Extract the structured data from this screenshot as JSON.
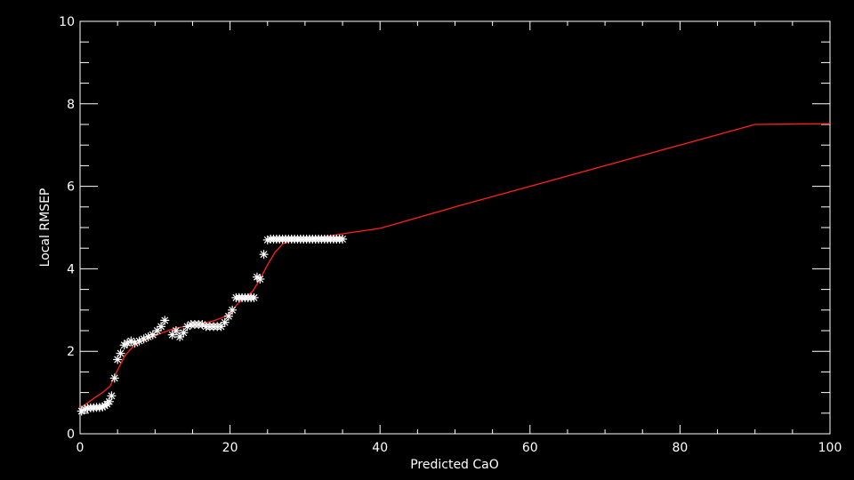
{
  "chart_data": {
    "type": "scatter",
    "xlabel": "Predicted CaO",
    "ylabel": "Local RMSEP",
    "xlim": [
      0,
      100
    ],
    "ylim": [
      0,
      10
    ],
    "x_ticks": [
      0,
      20,
      40,
      60,
      80,
      100
    ],
    "x_tick_labels": [
      "0",
      "20",
      "40",
      "60",
      "80",
      "100"
    ],
    "y_ticks": [
      0,
      2,
      4,
      6,
      8,
      10
    ],
    "y_tick_labels": [
      "0",
      "2",
      "4",
      "6",
      "8",
      "10"
    ],
    "grid": false,
    "colors": {
      "background": "#000000",
      "axes": "#ffffff",
      "points": "#ffffff",
      "fit": "#ff2020"
    },
    "series": [
      {
        "kind": "points",
        "marker": "asterisk",
        "x": [
          0.2,
          0.6,
          1.0,
          1.4,
          1.8,
          2.2,
          2.6,
          3.0,
          3.3,
          3.6,
          3.9,
          4.2,
          4.6,
          5.0,
          5.4,
          5.9,
          6.3,
          6.8,
          7.3,
          7.9,
          8.5,
          9.1,
          9.7,
          10.3,
          10.8,
          11.3,
          12.3,
          12.8,
          13.3,
          13.8,
          14.3,
          14.8,
          15.3,
          15.8,
          16.3,
          16.8,
          17.3,
          17.8,
          18.3,
          18.8,
          19.3,
          19.8,
          20.3,
          20.8,
          21.2,
          21.6,
          22.0,
          22.4,
          22.8,
          23.2,
          23.6,
          24.0,
          24.5,
          25.0,
          25.4,
          25.8,
          26.2,
          26.6,
          27.0,
          27.4,
          27.8,
          28.2,
          28.6,
          29.0,
          29.4,
          29.8,
          30.2,
          30.6,
          31.0,
          31.4,
          31.8,
          32.2,
          32.6,
          33.0,
          33.4,
          33.8,
          34.2,
          34.6,
          35.0
        ],
        "y": [
          0.55,
          0.6,
          0.62,
          0.63,
          0.63,
          0.64,
          0.64,
          0.65,
          0.68,
          0.72,
          0.78,
          0.92,
          1.35,
          1.8,
          1.95,
          2.15,
          2.2,
          2.25,
          2.2,
          2.25,
          2.3,
          2.35,
          2.4,
          2.5,
          2.6,
          2.75,
          2.4,
          2.5,
          2.35,
          2.45,
          2.6,
          2.65,
          2.65,
          2.65,
          2.65,
          2.6,
          2.6,
          2.6,
          2.6,
          2.6,
          2.7,
          2.85,
          3.0,
          3.3,
          3.3,
          3.3,
          3.3,
          3.3,
          3.3,
          3.3,
          3.8,
          3.75,
          4.35,
          4.7,
          4.72,
          4.72,
          4.72,
          4.72,
          4.72,
          4.72,
          4.72,
          4.72,
          4.72,
          4.72,
          4.72,
          4.72,
          4.72,
          4.72,
          4.72,
          4.72,
          4.72,
          4.72,
          4.72,
          4.72,
          4.72,
          4.72,
          4.72,
          4.72,
          4.72
        ]
      },
      {
        "kind": "fit-line",
        "x": [
          0,
          1,
          2,
          3,
          4,
          5,
          6,
          7,
          8,
          9,
          10,
          11,
          12,
          13,
          14,
          15,
          16,
          17,
          18,
          19,
          20,
          21,
          22,
          23,
          24,
          25,
          26,
          27,
          28,
          30,
          32,
          35,
          40,
          50,
          60,
          70,
          80,
          90,
          100
        ],
        "y": [
          0.62,
          0.75,
          0.88,
          1.0,
          1.15,
          1.55,
          1.9,
          2.1,
          2.22,
          2.3,
          2.38,
          2.45,
          2.52,
          2.57,
          2.6,
          2.63,
          2.66,
          2.7,
          2.75,
          2.82,
          2.92,
          3.15,
          3.3,
          3.45,
          3.75,
          4.1,
          4.4,
          4.6,
          4.67,
          4.72,
          4.76,
          4.85,
          4.98,
          5.5,
          6.0,
          6.5,
          7.0,
          7.5,
          7.52
        ]
      }
    ]
  }
}
